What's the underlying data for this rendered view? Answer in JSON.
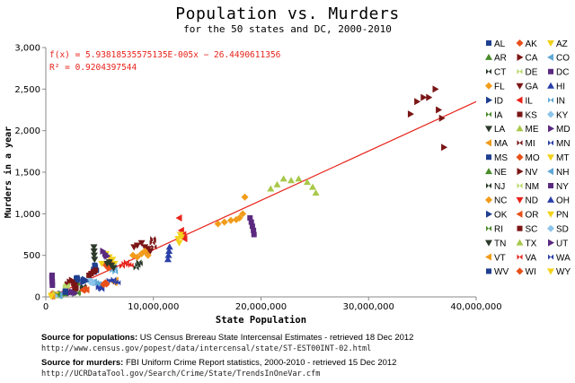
{
  "chart_data": {
    "type": "scatter",
    "title": "Population vs. Murders",
    "subtitle": "for the 50 states and DC, 2000-2010",
    "xlabel": "State Population",
    "ylabel": "Murders in a year",
    "xlim": [
      0,
      40000000
    ],
    "ylim": [
      0,
      3000
    ],
    "x_ticks": [
      0,
      10000000,
      20000000,
      30000000,
      40000000
    ],
    "x_tick_labels": [
      "0",
      "10,000,000",
      "20,000,000",
      "30,000,000",
      "40,000,000"
    ],
    "y_ticks": [
      0,
      500,
      1000,
      1500,
      2000,
      2500,
      3000
    ],
    "y_tick_labels": [
      "0",
      "500",
      "1,000",
      "1,500",
      "2,000",
      "2,500",
      "3,000"
    ],
    "grid": false,
    "legend_position": "right",
    "trendline": {
      "slope": 5.93818535575135e-05,
      "intercept": -26.4490611356,
      "equation_label": "f(x) = 5.93818535575135E-005x − 26.4490611356",
      "r2_label": "R² = 0.9204397544",
      "color": "#e8231b"
    },
    "series": [
      {
        "name": "AL",
        "color": "#1f3f8f",
        "marker": "square",
        "x": [
          4450000,
          4500000,
          4550000,
          4600000,
          4700000
        ],
        "y": [
          330,
          300,
          380,
          360,
          320
        ]
      },
      {
        "name": "AK",
        "color": "#e8501a",
        "marker": "diamond",
        "x": [
          630000,
          660000,
          690000,
          710000
        ],
        "y": [
          40,
          35,
          30,
          32
        ]
      },
      {
        "name": "AZ",
        "color": "#f2d21b",
        "marker": "tri-down",
        "x": [
          5200000,
          5600000,
          5900000,
          6200000,
          6400000
        ],
        "y": [
          400,
          520,
          480,
          450,
          400
        ]
      },
      {
        "name": "AR",
        "color": "#4a8b2a",
        "marker": "tri-up",
        "x": [
          2680000,
          2750000,
          2800000,
          2850000,
          2900000
        ],
        "y": [
          180,
          160,
          200,
          190,
          170
        ]
      },
      {
        "name": "CA",
        "color": "#7b1515",
        "marker": "tri-right",
        "x": [
          33900000,
          34500000,
          35100000,
          35600000,
          36200000,
          36500000,
          36800000,
          37000000
        ],
        "y": [
          2200,
          2350,
          2400,
          2400,
          2500,
          2250,
          2150,
          1800
        ]
      },
      {
        "name": "CO",
        "color": "#5fa8d6",
        "marker": "tri-left",
        "x": [
          4300000,
          4500000,
          4700000,
          4900000,
          5000000
        ],
        "y": [
          170,
          180,
          160,
          150,
          140
        ]
      },
      {
        "name": "CT",
        "color": "#2b3a2b",
        "marker": "bowtie",
        "x": [
          3400000,
          3450000,
          3500000,
          3520000,
          3550000
        ],
        "y": [
          100,
          110,
          130,
          120,
          100
        ]
      },
      {
        "name": "DE",
        "color": "#b9d96a",
        "marker": "bowtie",
        "x": [
          790000,
          820000,
          850000,
          880000,
          900000
        ],
        "y": [
          25,
          30,
          40,
          45,
          40
        ]
      },
      {
        "name": "DC",
        "color": "#5b2a80",
        "marker": "square",
        "x": [
          570000,
          580000,
          590000,
          600000,
          610000
        ],
        "y": [
          240,
          260,
          200,
          180,
          140
        ]
      },
      {
        "name": "FL",
        "color": "#f29c1a",
        "marker": "diamond",
        "x": [
          16000000,
          16600000,
          17200000,
          17700000,
          18000000,
          18300000,
          18500000
        ],
        "y": [
          880,
          900,
          920,
          930,
          950,
          1000,
          1200
        ]
      },
      {
        "name": "GA",
        "color": "#7b1515",
        "marker": "tri-down",
        "x": [
          8200000,
          8500000,
          8900000,
          9200000,
          9500000,
          9700000
        ],
        "y": [
          600,
          620,
          650,
          600,
          580,
          550
        ]
      },
      {
        "name": "HI",
        "color": "#2a3fa8",
        "marker": "tri-up",
        "x": [
          1210000,
          1250000,
          1280000,
          1300000
        ],
        "y": [
          25,
          30,
          20,
          24
        ]
      },
      {
        "name": "ID",
        "color": "#1f3f8f",
        "marker": "tri-right",
        "x": [
          1300000,
          1400000,
          1500000,
          1550000
        ],
        "y": [
          30,
          35,
          30,
          25
        ]
      },
      {
        "name": "IL",
        "color": "#e8231b",
        "marker": "tri-left",
        "x": [
          12400000,
          12600000,
          12800000,
          12900000
        ],
        "y": [
          950,
          800,
          750,
          700
        ]
      },
      {
        "name": "IN",
        "color": "#5fa8d6",
        "marker": "bowtie",
        "x": [
          6100000,
          6200000,
          6300000,
          6400000,
          6450000
        ],
        "y": [
          350,
          320,
          370,
          330,
          300
        ]
      },
      {
        "name": "IA",
        "color": "#4a8b2a",
        "marker": "bowtie",
        "x": [
          2920000,
          2950000,
          2980000,
          3000000
        ],
        "y": [
          40,
          50,
          60,
          45
        ]
      },
      {
        "name": "KS",
        "color": "#7b1515",
        "marker": "square",
        "x": [
          2690000,
          2720000,
          2760000,
          2800000
        ],
        "y": [
          120,
          110,
          100,
          105
        ]
      },
      {
        "name": "KY",
        "color": "#8cc4ea",
        "marker": "diamond",
        "x": [
          4050000,
          4150000,
          4250000,
          4330000
        ],
        "y": [
          200,
          180,
          190,
          170
        ]
      },
      {
        "name": "LA",
        "color": "#2b3a2b",
        "marker": "tri-down",
        "x": [
          4470000,
          4480000,
          4500000,
          4530000
        ],
        "y": [
          600,
          550,
          500,
          450
        ]
      },
      {
        "name": "ME",
        "color": "#a8c84a",
        "marker": "tri-up",
        "x": [
          1280000,
          1300000,
          1320000,
          1330000
        ],
        "y": [
          20,
          22,
          18,
          25
        ]
      },
      {
        "name": "MD",
        "color": "#5b2a80",
        "marker": "tri-right",
        "x": [
          5300000,
          5500000,
          5600000,
          5700000
        ],
        "y": [
          550,
          520,
          500,
          490
        ]
      },
      {
        "name": "MA",
        "color": "#f29c1a",
        "marker": "tri-left",
        "x": [
          6350000,
          6400000,
          6450000,
          6500000
        ],
        "y": [
          180,
          170,
          190,
          200
        ]
      },
      {
        "name": "MI",
        "color": "#7b1515",
        "marker": "bowtie",
        "x": [
          9900000,
          9950000,
          10000000,
          10050000
        ],
        "y": [
          650,
          700,
          680,
          600
        ]
      },
      {
        "name": "MN",
        "color": "#2a3fa8",
        "marker": "bowtie",
        "x": [
          4900000,
          5000000,
          5100000,
          5200000
        ],
        "y": [
          110,
          120,
          100,
          90
        ]
      },
      {
        "name": "MS",
        "color": "#1f3f8f",
        "marker": "square",
        "x": [
          2840000,
          2870000,
          2900000,
          2950000
        ],
        "y": [
          220,
          200,
          230,
          210
        ]
      },
      {
        "name": "MO",
        "color": "#e8501a",
        "marker": "diamond",
        "x": [
          5600000,
          5700000,
          5800000,
          5900000,
          6000000
        ],
        "y": [
          380,
          400,
          350,
          420,
          360
        ]
      },
      {
        "name": "MT",
        "color": "#f2d21b",
        "marker": "tri-down",
        "x": [
          900000,
          930000,
          960000,
          990000
        ],
        "y": [
          20,
          25,
          30,
          28
        ]
      },
      {
        "name": "NE",
        "color": "#4a8b2a",
        "marker": "tri-up",
        "x": [
          1710000,
          1750000,
          1780000,
          1820000
        ],
        "y": [
          45,
          40,
          50,
          55
        ]
      },
      {
        "name": "NV",
        "color": "#7b1515",
        "marker": "tri-right",
        "x": [
          2000000,
          2200000,
          2400000,
          2600000,
          2700000
        ],
        "y": [
          150,
          180,
          200,
          170,
          160
        ]
      },
      {
        "name": "NH",
        "color": "#5fa8d6",
        "marker": "tri-left",
        "x": [
          1240000,
          1280000,
          1310000
        ],
        "y": [
          15,
          18,
          20
        ]
      },
      {
        "name": "NJ",
        "color": "#2b3a2b",
        "marker": "bowtie",
        "x": [
          8400000,
          8550000,
          8650000,
          8750000
        ],
        "y": [
          350,
          380,
          420,
          400
        ]
      },
      {
        "name": "NM",
        "color": "#b9d96a",
        "marker": "bowtie",
        "x": [
          1820000,
          1900000,
          1950000,
          2000000
        ],
        "y": [
          120,
          130,
          140,
          125
        ]
      },
      {
        "name": "NY",
        "color": "#5b2a80",
        "marker": "square",
        "x": [
          18980000,
          19100000,
          19200000,
          19300000,
          19350000
        ],
        "y": [
          950,
          900,
          850,
          800,
          750
        ]
      },
      {
        "name": "NC",
        "color": "#f29c1a",
        "marker": "diamond",
        "x": [
          8100000,
          8500000,
          8900000,
          9200000,
          9500000
        ],
        "y": [
          500,
          480,
          520,
          550,
          500
        ]
      },
      {
        "name": "ND",
        "color": "#e8231b",
        "marker": "tri-down",
        "x": [
          640000,
          650000,
          660000
        ],
        "y": [
          10,
          8,
          12
        ]
      },
      {
        "name": "OH",
        "color": "#2a3fa8",
        "marker": "tri-up",
        "x": [
          11350000,
          11400000,
          11450000,
          11500000
        ],
        "y": [
          450,
          500,
          550,
          600
        ]
      },
      {
        "name": "OK",
        "color": "#1f3f8f",
        "marker": "tri-right",
        "x": [
          3450000,
          3500000,
          3600000,
          3700000
        ],
        "y": [
          180,
          200,
          210,
          190
        ]
      },
      {
        "name": "OR",
        "color": "#e8501a",
        "marker": "tri-left",
        "x": [
          3420000,
          3500000,
          3600000,
          3800000
        ],
        "y": [
          80,
          90,
          100,
          85
        ]
      },
      {
        "name": "PN",
        "color": "#f2d21b",
        "marker": "tri-down",
        "x": [
          12300000,
          12400000,
          12500000,
          12600000
        ],
        "y": [
          700,
          650,
          750,
          720
        ]
      },
      {
        "name": "RI",
        "color": "#4a8b2a",
        "marker": "bowtie",
        "x": [
          1050000,
          1060000,
          1070000
        ],
        "y": [
          30,
          35,
          25
        ]
      },
      {
        "name": "SC",
        "color": "#7b1515",
        "marker": "square",
        "x": [
          4020000,
          4200000,
          4400000,
          4600000
        ],
        "y": [
          260,
          280,
          300,
          320
        ]
      },
      {
        "name": "SD",
        "color": "#8cc4ea",
        "marker": "diamond",
        "x": [
          760000,
          780000,
          800000
        ],
        "y": [
          10,
          15,
          12
        ]
      },
      {
        "name": "TN",
        "color": "#2b3a2b",
        "marker": "tri-down",
        "x": [
          5700000,
          5900000,
          6100000,
          6300000
        ],
        "y": [
          400,
          420,
          380,
          350
        ]
      },
      {
        "name": "TX",
        "color": "#a8c84a",
        "marker": "tri-up",
        "x": [
          20900000,
          21500000,
          22100000,
          22800000,
          23500000,
          24300000,
          24800000,
          25100000
        ],
        "y": [
          1300,
          1350,
          1420,
          1400,
          1420,
          1380,
          1320,
          1250
        ]
      },
      {
        "name": "UT",
        "color": "#5b2a80",
        "marker": "tri-right",
        "x": [
          2250000,
          2400000,
          2550000,
          2700000
        ],
        "y": [
          50,
          60,
          55,
          45
        ]
      },
      {
        "name": "VT",
        "color": "#f29c1a",
        "marker": "tri-left",
        "x": [
          610000,
          620000,
          625000
        ],
        "y": [
          10,
          12,
          8
        ]
      },
      {
        "name": "VA",
        "color": "#e8231b",
        "marker": "bowtie",
        "x": [
          7100000,
          7300000,
          7500000,
          7700000,
          7900000
        ],
        "y": [
          370,
          400,
          420,
          390,
          380
        ]
      },
      {
        "name": "WA",
        "color": "#2a3fa8",
        "marker": "bowtie",
        "x": [
          5900000,
          6100000,
          6300000,
          6500000,
          6700000
        ],
        "y": [
          200,
          190,
          210,
          180,
          170
        ]
      },
      {
        "name": "WV",
        "color": "#1f3f8f",
        "marker": "square",
        "x": [
          1810000,
          1820000,
          1830000
        ],
        "y": [
          60,
          70,
          55
        ]
      },
      {
        "name": "WI",
        "color": "#e8501a",
        "marker": "diamond",
        "x": [
          5370000,
          5450000,
          5550000,
          5650000
        ],
        "y": [
          150,
          160,
          170,
          155
        ]
      },
      {
        "name": "WY",
        "color": "#f2d21b",
        "marker": "tri-down",
        "x": [
          500000,
          510000,
          520000
        ],
        "y": [
          10,
          15,
          12
        ]
      }
    ]
  },
  "sources": {
    "pop_label": "Source for populations:",
    "pop_text": "US Census Brereau State Intercensal Estimates - retrieved 18 Dec 2012",
    "pop_url": "http://www.census.gov/popest/data/intercensal/state/ST-EST00INT-02.html",
    "mur_label": "Source for murders:",
    "mur_text": "FBI Uniform Crime Report statistics, 2000-2010 - retrieved 15 Dec 2012",
    "mur_url": "http://UCRDataTool.gov/Search/Crime/State/TrendsInOneVar.cfm"
  }
}
